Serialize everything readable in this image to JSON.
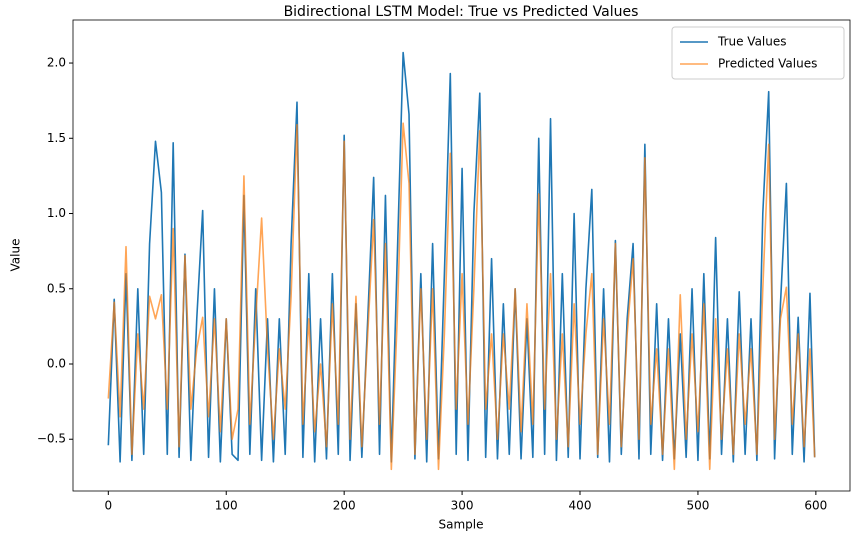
{
  "chart_data": {
    "type": "line",
    "title": "Bidirectional LSTM Model: True vs Predicted Values",
    "xlabel": "Sample",
    "ylabel": "Value",
    "x": [
      0,
      5,
      10,
      15,
      20,
      25,
      30,
      35,
      40,
      45,
      50,
      55,
      60,
      65,
      70,
      75,
      80,
      85,
      90,
      95,
      100,
      105,
      110,
      115,
      120,
      125,
      130,
      135,
      140,
      145,
      150,
      155,
      160,
      165,
      170,
      175,
      180,
      185,
      190,
      195,
      200,
      205,
      210,
      215,
      220,
      225,
      230,
      235,
      240,
      245,
      250,
      255,
      260,
      265,
      270,
      275,
      280,
      285,
      290,
      295,
      300,
      305,
      310,
      315,
      320,
      325,
      330,
      335,
      340,
      345,
      350,
      355,
      360,
      365,
      370,
      375,
      380,
      385,
      390,
      395,
      400,
      405,
      410,
      415,
      420,
      425,
      430,
      435,
      440,
      445,
      450,
      455,
      460,
      465,
      470,
      475,
      480,
      485,
      490,
      495,
      500,
      505,
      510,
      515,
      520,
      525,
      530,
      535,
      540,
      545,
      550,
      555,
      560,
      565,
      570,
      575,
      580,
      585,
      590,
      595,
      599
    ],
    "series": [
      {
        "name": "True Values",
        "color": "#1f77b4",
        "opacity": 1,
        "values": [
          -0.54,
          0.43,
          -0.65,
          0.6,
          -0.64,
          0.5,
          -0.6,
          0.8,
          1.48,
          1.14,
          -0.6,
          1.47,
          -0.62,
          0.73,
          -0.64,
          0.3,
          1.02,
          -0.62,
          0.5,
          -0.65,
          0.3,
          -0.6,
          -0.64,
          1.12,
          -0.6,
          0.5,
          -0.64,
          0.3,
          -0.65,
          0.3,
          -0.6,
          0.8,
          1.74,
          -0.62,
          0.6,
          -0.65,
          0.3,
          -0.63,
          0.6,
          -0.6,
          1.52,
          -0.64,
          0.4,
          -0.62,
          0.3,
          1.24,
          -0.6,
          1.12,
          -0.65,
          0.7,
          2.07,
          1.66,
          -0.63,
          0.6,
          -0.65,
          0.8,
          -0.63,
          0.6,
          1.93,
          -0.6,
          1.3,
          -0.64,
          1.0,
          1.8,
          -0.62,
          0.7,
          -0.63,
          0.4,
          -0.6,
          0.5,
          -0.63,
          0.3,
          -0.62,
          1.5,
          -0.6,
          1.63,
          -0.64,
          0.6,
          -0.62,
          1.0,
          -0.63,
          0.5,
          1.16,
          -0.62,
          0.5,
          -0.65,
          0.82,
          -0.6,
          0.3,
          0.8,
          -0.63,
          1.46,
          -0.6,
          0.4,
          -0.64,
          0.3,
          -0.63,
          0.2,
          -0.62,
          0.5,
          -0.64,
          0.6,
          -0.63,
          0.84,
          -0.6,
          0.3,
          -0.65,
          0.48,
          -0.6,
          0.3,
          -0.64,
          1.0,
          1.81,
          -0.63,
          0.4,
          1.2,
          -0.6,
          0.31,
          -0.65,
          0.47,
          -0.62
        ]
      },
      {
        "name": "Predicted Values",
        "color": "#ff7f0e",
        "opacity": 0.7,
        "values": [
          -0.23,
          0.41,
          -0.35,
          0.78,
          -0.6,
          0.2,
          -0.3,
          0.45,
          0.3,
          0.46,
          -0.3,
          0.9,
          -0.55,
          0.72,
          -0.3,
          0.1,
          0.31,
          -0.35,
          0.3,
          -0.45,
          0.3,
          -0.5,
          -0.3,
          1.25,
          -0.4,
          0.3,
          0.97,
          0.1,
          -0.5,
          0.1,
          -0.3,
          0.45,
          1.59,
          -0.4,
          0.3,
          -0.45,
          0.0,
          -0.55,
          0.4,
          -0.4,
          1.48,
          -0.5,
          0.45,
          -0.55,
          0.2,
          0.96,
          -0.4,
          0.8,
          -0.7,
          0.3,
          1.6,
          1.2,
          -0.6,
          0.5,
          -0.5,
          0.5,
          -0.7,
          0.2,
          1.4,
          -0.3,
          0.6,
          -0.4,
          0.5,
          1.55,
          -0.3,
          0.2,
          -0.5,
          0.2,
          -0.3,
          0.5,
          -0.45,
          0.4,
          -0.4,
          1.13,
          -0.3,
          0.6,
          -0.5,
          0.2,
          -0.55,
          0.4,
          -0.4,
          0.2,
          0.6,
          -0.6,
          0.3,
          -0.4,
          0.8,
          -0.55,
          0.2,
          0.7,
          -0.5,
          1.37,
          -0.4,
          0.1,
          -0.6,
          0.1,
          -0.7,
          0.46,
          -0.5,
          0.2,
          -0.45,
          0.4,
          -0.7,
          0.3,
          -0.5,
          0.1,
          -0.6,
          0.2,
          -0.4,
          0.1,
          -0.6,
          0.5,
          1.46,
          -0.5,
          0.3,
          0.51,
          -0.4,
          0.2,
          -0.55,
          0.1,
          -0.62
        ]
      }
    ],
    "xlim": [
      -29.95,
      628.95
    ],
    "ylim": [
      -0.844,
      2.286
    ],
    "xticks": [
      0,
      100,
      200,
      300,
      400,
      500,
      600
    ],
    "yticks": [
      {
        "value": -0.5,
        "label": "−0.5"
      },
      {
        "value": 0,
        "label": "0.0"
      },
      {
        "value": 0.5,
        "label": "0.5"
      },
      {
        "value": 1,
        "label": "1.0"
      },
      {
        "value": 1.5,
        "label": "1.5"
      },
      {
        "value": 2,
        "label": "2.0"
      }
    ],
    "grid": false,
    "legend": "upper right"
  }
}
